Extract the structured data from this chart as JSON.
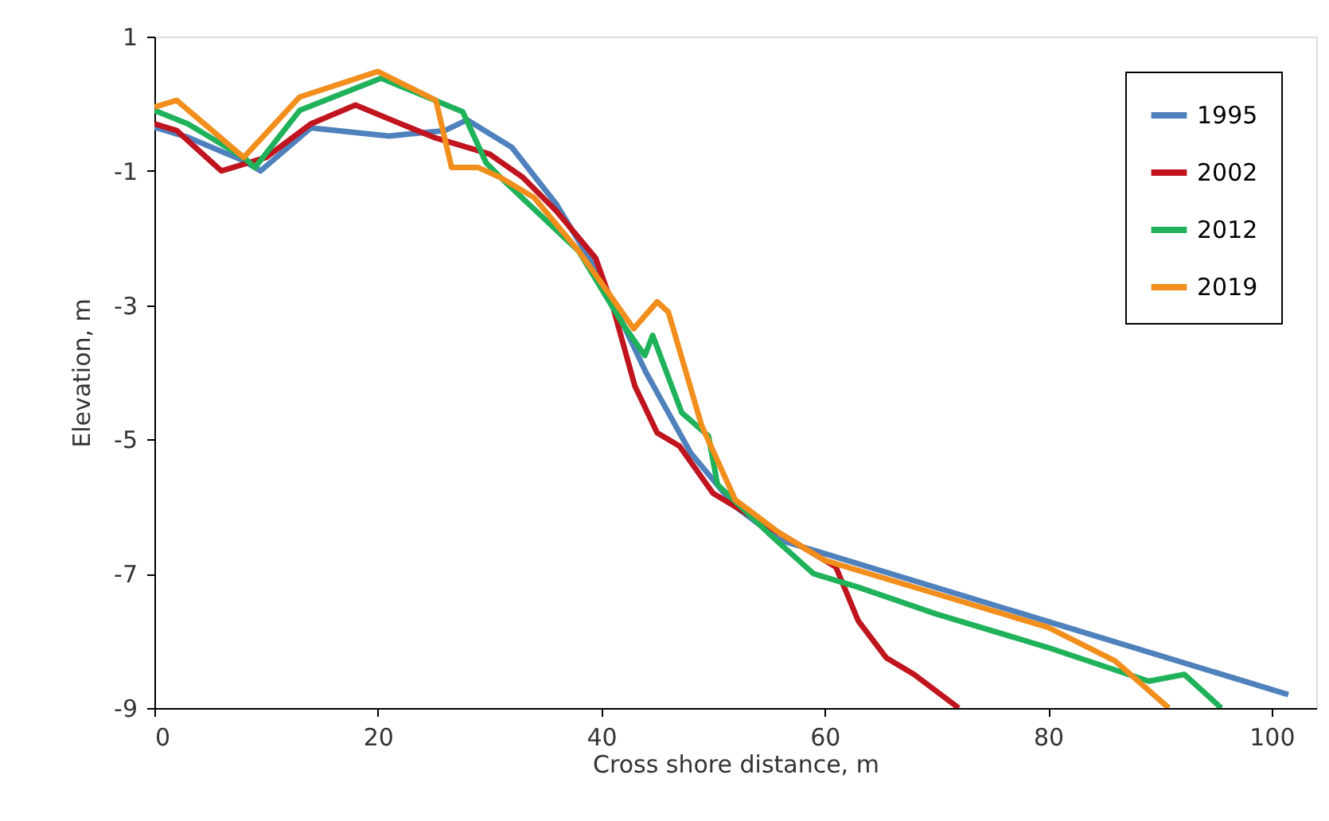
{
  "chart_data": {
    "type": "line",
    "xlabel": "Cross shore distance, m",
    "ylabel": "Elevation, m",
    "xlim": [
      0,
      104
    ],
    "xticks": [
      0,
      20,
      40,
      60,
      80,
      100
    ],
    "ylim": [
      -9,
      1
    ],
    "yticks": [
      1,
      -1,
      -3,
      -5,
      -7,
      -9
    ],
    "grid": false,
    "legend": "top right",
    "marker": "none",
    "line_style": "solid",
    "series": [
      {
        "name": "1995",
        "color": "#4f81bd",
        "x": [
          0,
          3,
          8,
          9.5,
          14,
          21,
          26,
          28,
          32,
          36,
          40,
          44,
          48,
          52,
          56,
          60,
          101.5
        ],
        "values": [
          -0.35,
          -0.5,
          -0.85,
          -1.0,
          -0.36,
          -0.48,
          -0.4,
          -0.24,
          -0.65,
          -1.5,
          -2.6,
          -4.0,
          -5.2,
          -6.0,
          -6.5,
          -6.7,
          -8.8
        ]
      },
      {
        "name": "2002",
        "color": "#c0141e",
        "x": [
          0,
          2,
          6,
          10,
          14,
          18,
          25,
          30,
          33,
          36,
          39.5,
          41,
          43,
          45,
          47,
          50,
          53,
          57,
          61,
          62,
          63,
          65.5,
          68,
          72
        ],
        "values": [
          -0.3,
          -0.4,
          -1.0,
          -0.8,
          -0.3,
          -0.02,
          -0.5,
          -0.75,
          -1.1,
          -1.6,
          -2.3,
          -3.0,
          -4.2,
          -4.9,
          -5.1,
          -5.8,
          -6.1,
          -6.5,
          -6.9,
          -7.3,
          -7.7,
          -8.25,
          -8.5,
          -9.0
        ]
      },
      {
        "name": "2012",
        "color": "#1fb25a",
        "x": [
          0,
          3,
          8,
          9,
          13,
          20.3,
          27.6,
          29.7,
          31,
          34,
          38,
          42,
          43.9,
          44.6,
          47.2,
          49.6,
          50.4,
          55,
          59,
          63,
          70,
          80,
          89,
          92.2,
          95.5
        ],
        "values": [
          -0.1,
          -0.3,
          -0.8,
          -0.95,
          -0.1,
          0.38,
          -0.12,
          -0.88,
          -1.1,
          null,
          -2.2,
          -3.3,
          -3.75,
          -3.45,
          -4.6,
          -4.95,
          -5.67,
          -6.4,
          -7.0,
          -7.2,
          -7.6,
          -8.1,
          -8.6,
          -8.5,
          -9.0
        ]
      },
      {
        "name": "2019",
        "color": "#f28e1c",
        "x": [
          0,
          2,
          8,
          13,
          20,
          25.2,
          26.6,
          29,
          31,
          34,
          38,
          41,
          42.9,
          45,
          46,
          49,
          52,
          56,
          60,
          70,
          80,
          86,
          90.8
        ],
        "values": [
          -0.05,
          0.05,
          -0.8,
          0.1,
          0.48,
          0.05,
          -0.95,
          -0.95,
          -1.1,
          -1.4,
          -2.2,
          -2.9,
          -3.35,
          -2.95,
          -3.1,
          -4.8,
          -5.9,
          -6.4,
          -6.8,
          -7.3,
          -7.8,
          -8.3,
          -9.0
        ]
      }
    ]
  }
}
